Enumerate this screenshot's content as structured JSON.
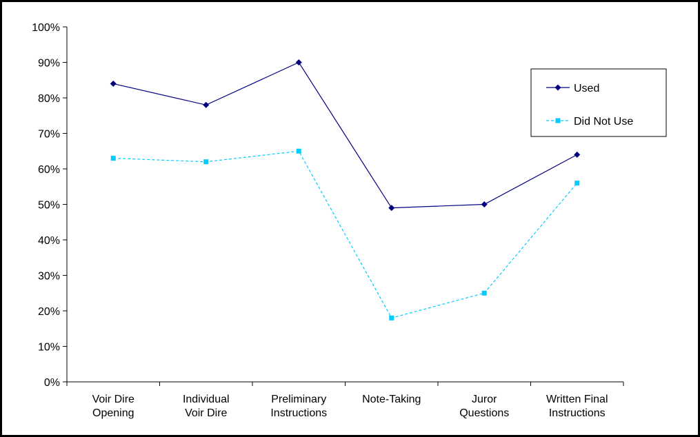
{
  "chart_data": {
    "type": "line",
    "title": "",
    "xlabel": "",
    "ylabel": "",
    "categories": [
      [
        "Voir Dire",
        "Opening"
      ],
      [
        "Individual",
        "Voir Dire"
      ],
      [
        "Preliminary",
        "Instructions"
      ],
      [
        "Note-Taking"
      ],
      [
        "Juror",
        "Questions"
      ],
      [
        "Written Final",
        "Instructions"
      ]
    ],
    "ylim": [
      0,
      100
    ],
    "yticks": [
      0,
      10,
      20,
      30,
      40,
      50,
      60,
      70,
      80,
      90,
      100
    ],
    "ytick_labels": [
      "0%",
      "10%",
      "20%",
      "30%",
      "40%",
      "50%",
      "60%",
      "70%",
      "80%",
      "90%",
      "100%"
    ],
    "grid": false,
    "legend_position": "right",
    "series": [
      {
        "name": "Used",
        "values": [
          84,
          78,
          90,
          49,
          50,
          64
        ],
        "color": "#000080",
        "marker": "diamond",
        "line_style": "solid"
      },
      {
        "name": "Did Not Use",
        "values": [
          63,
          62,
          65,
          18,
          25,
          56
        ],
        "color": "#00CCFF",
        "marker": "square",
        "line_style": "dashed"
      }
    ]
  }
}
